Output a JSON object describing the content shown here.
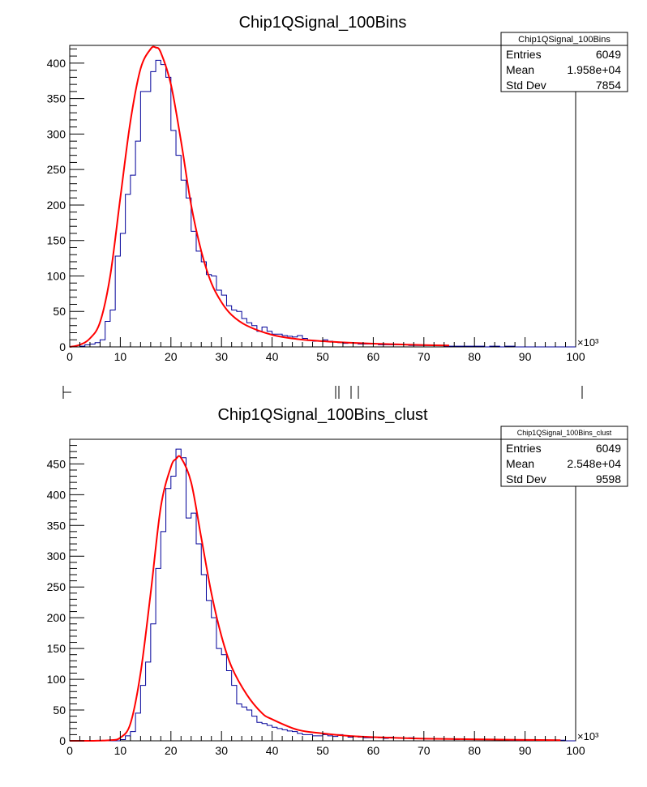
{
  "chart_data": [
    {
      "type": "histogram",
      "title": "Chip1QSignal_100Bins",
      "xlim": [
        0,
        100000
      ],
      "ylim": [
        0,
        425
      ],
      "x_ticks": [
        0,
        10,
        20,
        30,
        40,
        50,
        60,
        70,
        80,
        90,
        100
      ],
      "x_exponent_label": "×10³",
      "y_ticks": [
        0,
        50,
        100,
        150,
        200,
        250,
        300,
        350,
        400
      ],
      "bin_width": 1000,
      "bin_start": 0,
      "bin_counts": [
        0,
        0,
        1,
        3,
        4,
        6,
        10,
        36,
        52,
        128,
        160,
        215,
        242,
        290,
        360,
        360,
        388,
        404,
        398,
        380,
        305,
        270,
        235,
        210,
        163,
        135,
        120,
        102,
        100,
        80,
        73,
        58,
        52,
        50,
        40,
        34,
        30,
        22,
        28,
        22,
        18,
        18,
        16,
        15,
        14,
        16,
        12,
        9,
        8,
        8,
        10,
        8,
        7,
        6,
        5,
        6,
        5,
        4,
        4,
        4,
        4,
        3,
        3,
        3,
        3,
        3,
        3,
        2,
        2,
        2,
        2,
        2,
        2,
        2,
        1,
        1,
        1,
        1,
        1,
        1,
        1,
        1,
        0,
        1,
        1,
        0,
        1,
        1,
        0,
        0,
        0,
        0,
        0,
        0,
        0,
        0,
        0,
        0,
        0,
        0
      ],
      "fit_curve": {
        "x": [
          0,
          2,
          4,
          6,
          8,
          10,
          12,
          14,
          16,
          17,
          18,
          20,
          22,
          24,
          26,
          28,
          30,
          32,
          35,
          40,
          45,
          50,
          55,
          60,
          65,
          70,
          75
        ],
        "y": [
          0,
          3,
          12,
          35,
          100,
          210,
          318,
          392,
          420,
          422,
          415,
          370,
          290,
          200,
          135,
          90,
          63,
          45,
          30,
          17,
          11,
          8,
          6,
          4.5,
          3.5,
          2.5,
          2
        ]
      },
      "stats_box": {
        "name": "Chip1QSignal_100Bins",
        "rows": [
          {
            "label": "Entries",
            "value": "6049"
          },
          {
            "label": "Mean",
            "value": "1.958e+04"
          },
          {
            "label": "Std Dev",
            "value": "7854"
          }
        ]
      },
      "colors": {
        "histogram": "#000099",
        "fit": "#ff0000",
        "axis": "#000000"
      }
    },
    {
      "type": "histogram",
      "title": "Chip1QSignal_100Bins_clust",
      "xlim": [
        0,
        100000
      ],
      "ylim": [
        0,
        490
      ],
      "x_ticks": [
        0,
        10,
        20,
        30,
        40,
        50,
        60,
        70,
        80,
        90,
        100
      ],
      "x_exponent_label": "×10³",
      "y_ticks": [
        0,
        50,
        100,
        150,
        200,
        250,
        300,
        350,
        400,
        450
      ],
      "bin_width": 1000,
      "bin_start": 0,
      "bin_counts": [
        0,
        0,
        0,
        0,
        0,
        0,
        0,
        0,
        0,
        0,
        2,
        8,
        15,
        45,
        90,
        128,
        190,
        280,
        340,
        410,
        430,
        474,
        460,
        362,
        370,
        320,
        270,
        228,
        200,
        150,
        140,
        114,
        90,
        60,
        55,
        50,
        40,
        30,
        28,
        25,
        22,
        20,
        18,
        16,
        15,
        12,
        10,
        10,
        8,
        8,
        10,
        8,
        7,
        10,
        8,
        6,
        7,
        6,
        5,
        5,
        6,
        5,
        4,
        6,
        5,
        4,
        4,
        5,
        4,
        4,
        3,
        3,
        3,
        3,
        3,
        3,
        2,
        3,
        3,
        2,
        2,
        2,
        2,
        2,
        2,
        2,
        2,
        1,
        1,
        1,
        1,
        1,
        1,
        1,
        1,
        1,
        1,
        1,
        0,
        0
      ],
      "fit_curve": {
        "x": [
          0,
          4,
          8,
          10,
          12,
          14,
          16,
          18,
          20,
          21,
          22,
          24,
          26,
          28,
          30,
          32,
          35,
          38,
          40,
          45,
          50,
          55,
          60,
          70,
          80,
          90,
          97
        ],
        "y": [
          0,
          0,
          1,
          5,
          28,
          110,
          240,
          380,
          445,
          458,
          460,
          420,
          330,
          240,
          170,
          120,
          75,
          45,
          35,
          18,
          12,
          8,
          6,
          3.5,
          2.5,
          1.5,
          1
        ]
      },
      "stats_box": {
        "name": "Chip1QSignal_100Bins_clust",
        "rows": [
          {
            "label": "Entries",
            "value": "6049"
          },
          {
            "label": "Mean",
            "value": "2.548e+04"
          },
          {
            "label": "Std Dev",
            "value": "9598"
          }
        ]
      },
      "colors": {
        "histogram": "#000099",
        "fit": "#ff0000",
        "axis": "#000000"
      }
    }
  ]
}
